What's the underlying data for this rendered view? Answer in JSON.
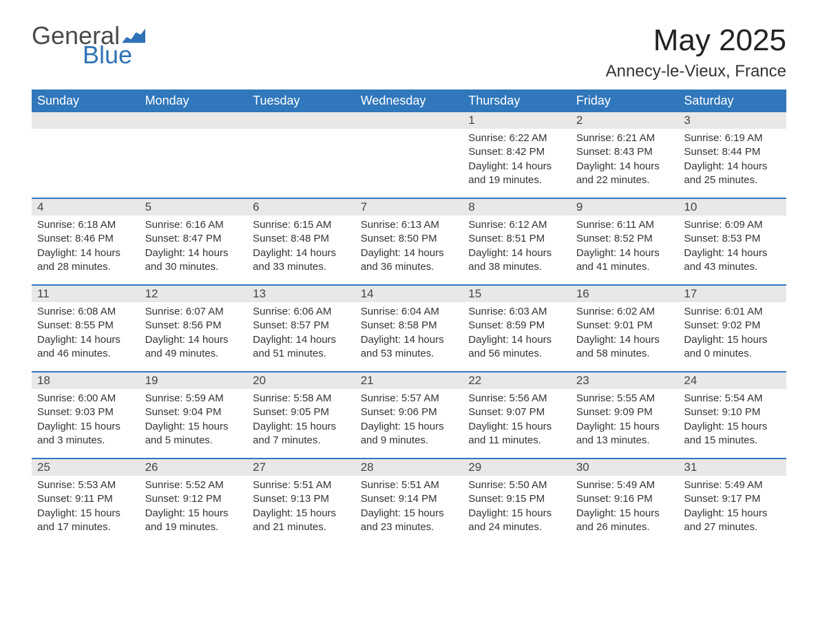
{
  "logo": {
    "text_general": "General",
    "text_blue": "Blue",
    "icon_color": "#2f72b6"
  },
  "title": {
    "month": "May 2025",
    "location": "Annecy-le-Vieux, France"
  },
  "colors": {
    "header_bg": "#3077bb",
    "header_fg": "#ffffff",
    "daybar_bg": "#e8e8e8",
    "week_divider": "#3077bb",
    "text": "#333333",
    "logo_gray": "#4a4a4a",
    "logo_blue": "#2f72b6",
    "background": "#ffffff"
  },
  "day_headers": [
    "Sunday",
    "Monday",
    "Tuesday",
    "Wednesday",
    "Thursday",
    "Friday",
    "Saturday"
  ],
  "weeks": [
    [
      {
        "empty": true
      },
      {
        "empty": true
      },
      {
        "empty": true
      },
      {
        "empty": true
      },
      {
        "num": "1",
        "sunrise": "Sunrise: 6:22 AM",
        "sunset": "Sunset: 8:42 PM",
        "daylight1": "Daylight: 14 hours",
        "daylight2": "and 19 minutes."
      },
      {
        "num": "2",
        "sunrise": "Sunrise: 6:21 AM",
        "sunset": "Sunset: 8:43 PM",
        "daylight1": "Daylight: 14 hours",
        "daylight2": "and 22 minutes."
      },
      {
        "num": "3",
        "sunrise": "Sunrise: 6:19 AM",
        "sunset": "Sunset: 8:44 PM",
        "daylight1": "Daylight: 14 hours",
        "daylight2": "and 25 minutes."
      }
    ],
    [
      {
        "num": "4",
        "sunrise": "Sunrise: 6:18 AM",
        "sunset": "Sunset: 8:46 PM",
        "daylight1": "Daylight: 14 hours",
        "daylight2": "and 28 minutes."
      },
      {
        "num": "5",
        "sunrise": "Sunrise: 6:16 AM",
        "sunset": "Sunset: 8:47 PM",
        "daylight1": "Daylight: 14 hours",
        "daylight2": "and 30 minutes."
      },
      {
        "num": "6",
        "sunrise": "Sunrise: 6:15 AM",
        "sunset": "Sunset: 8:48 PM",
        "daylight1": "Daylight: 14 hours",
        "daylight2": "and 33 minutes."
      },
      {
        "num": "7",
        "sunrise": "Sunrise: 6:13 AM",
        "sunset": "Sunset: 8:50 PM",
        "daylight1": "Daylight: 14 hours",
        "daylight2": "and 36 minutes."
      },
      {
        "num": "8",
        "sunrise": "Sunrise: 6:12 AM",
        "sunset": "Sunset: 8:51 PM",
        "daylight1": "Daylight: 14 hours",
        "daylight2": "and 38 minutes."
      },
      {
        "num": "9",
        "sunrise": "Sunrise: 6:11 AM",
        "sunset": "Sunset: 8:52 PM",
        "daylight1": "Daylight: 14 hours",
        "daylight2": "and 41 minutes."
      },
      {
        "num": "10",
        "sunrise": "Sunrise: 6:09 AM",
        "sunset": "Sunset: 8:53 PM",
        "daylight1": "Daylight: 14 hours",
        "daylight2": "and 43 minutes."
      }
    ],
    [
      {
        "num": "11",
        "sunrise": "Sunrise: 6:08 AM",
        "sunset": "Sunset: 8:55 PM",
        "daylight1": "Daylight: 14 hours",
        "daylight2": "and 46 minutes."
      },
      {
        "num": "12",
        "sunrise": "Sunrise: 6:07 AM",
        "sunset": "Sunset: 8:56 PM",
        "daylight1": "Daylight: 14 hours",
        "daylight2": "and 49 minutes."
      },
      {
        "num": "13",
        "sunrise": "Sunrise: 6:06 AM",
        "sunset": "Sunset: 8:57 PM",
        "daylight1": "Daylight: 14 hours",
        "daylight2": "and 51 minutes."
      },
      {
        "num": "14",
        "sunrise": "Sunrise: 6:04 AM",
        "sunset": "Sunset: 8:58 PM",
        "daylight1": "Daylight: 14 hours",
        "daylight2": "and 53 minutes."
      },
      {
        "num": "15",
        "sunrise": "Sunrise: 6:03 AM",
        "sunset": "Sunset: 8:59 PM",
        "daylight1": "Daylight: 14 hours",
        "daylight2": "and 56 minutes."
      },
      {
        "num": "16",
        "sunrise": "Sunrise: 6:02 AM",
        "sunset": "Sunset: 9:01 PM",
        "daylight1": "Daylight: 14 hours",
        "daylight2": "and 58 minutes."
      },
      {
        "num": "17",
        "sunrise": "Sunrise: 6:01 AM",
        "sunset": "Sunset: 9:02 PM",
        "daylight1": "Daylight: 15 hours",
        "daylight2": "and 0 minutes."
      }
    ],
    [
      {
        "num": "18",
        "sunrise": "Sunrise: 6:00 AM",
        "sunset": "Sunset: 9:03 PM",
        "daylight1": "Daylight: 15 hours",
        "daylight2": "and 3 minutes."
      },
      {
        "num": "19",
        "sunrise": "Sunrise: 5:59 AM",
        "sunset": "Sunset: 9:04 PM",
        "daylight1": "Daylight: 15 hours",
        "daylight2": "and 5 minutes."
      },
      {
        "num": "20",
        "sunrise": "Sunrise: 5:58 AM",
        "sunset": "Sunset: 9:05 PM",
        "daylight1": "Daylight: 15 hours",
        "daylight2": "and 7 minutes."
      },
      {
        "num": "21",
        "sunrise": "Sunrise: 5:57 AM",
        "sunset": "Sunset: 9:06 PM",
        "daylight1": "Daylight: 15 hours",
        "daylight2": "and 9 minutes."
      },
      {
        "num": "22",
        "sunrise": "Sunrise: 5:56 AM",
        "sunset": "Sunset: 9:07 PM",
        "daylight1": "Daylight: 15 hours",
        "daylight2": "and 11 minutes."
      },
      {
        "num": "23",
        "sunrise": "Sunrise: 5:55 AM",
        "sunset": "Sunset: 9:09 PM",
        "daylight1": "Daylight: 15 hours",
        "daylight2": "and 13 minutes."
      },
      {
        "num": "24",
        "sunrise": "Sunrise: 5:54 AM",
        "sunset": "Sunset: 9:10 PM",
        "daylight1": "Daylight: 15 hours",
        "daylight2": "and 15 minutes."
      }
    ],
    [
      {
        "num": "25",
        "sunrise": "Sunrise: 5:53 AM",
        "sunset": "Sunset: 9:11 PM",
        "daylight1": "Daylight: 15 hours",
        "daylight2": "and 17 minutes."
      },
      {
        "num": "26",
        "sunrise": "Sunrise: 5:52 AM",
        "sunset": "Sunset: 9:12 PM",
        "daylight1": "Daylight: 15 hours",
        "daylight2": "and 19 minutes."
      },
      {
        "num": "27",
        "sunrise": "Sunrise: 5:51 AM",
        "sunset": "Sunset: 9:13 PM",
        "daylight1": "Daylight: 15 hours",
        "daylight2": "and 21 minutes."
      },
      {
        "num": "28",
        "sunrise": "Sunrise: 5:51 AM",
        "sunset": "Sunset: 9:14 PM",
        "daylight1": "Daylight: 15 hours",
        "daylight2": "and 23 minutes."
      },
      {
        "num": "29",
        "sunrise": "Sunrise: 5:50 AM",
        "sunset": "Sunset: 9:15 PM",
        "daylight1": "Daylight: 15 hours",
        "daylight2": "and 24 minutes."
      },
      {
        "num": "30",
        "sunrise": "Sunrise: 5:49 AM",
        "sunset": "Sunset: 9:16 PM",
        "daylight1": "Daylight: 15 hours",
        "daylight2": "and 26 minutes."
      },
      {
        "num": "31",
        "sunrise": "Sunrise: 5:49 AM",
        "sunset": "Sunset: 9:17 PM",
        "daylight1": "Daylight: 15 hours",
        "daylight2": "and 27 minutes."
      }
    ]
  ]
}
